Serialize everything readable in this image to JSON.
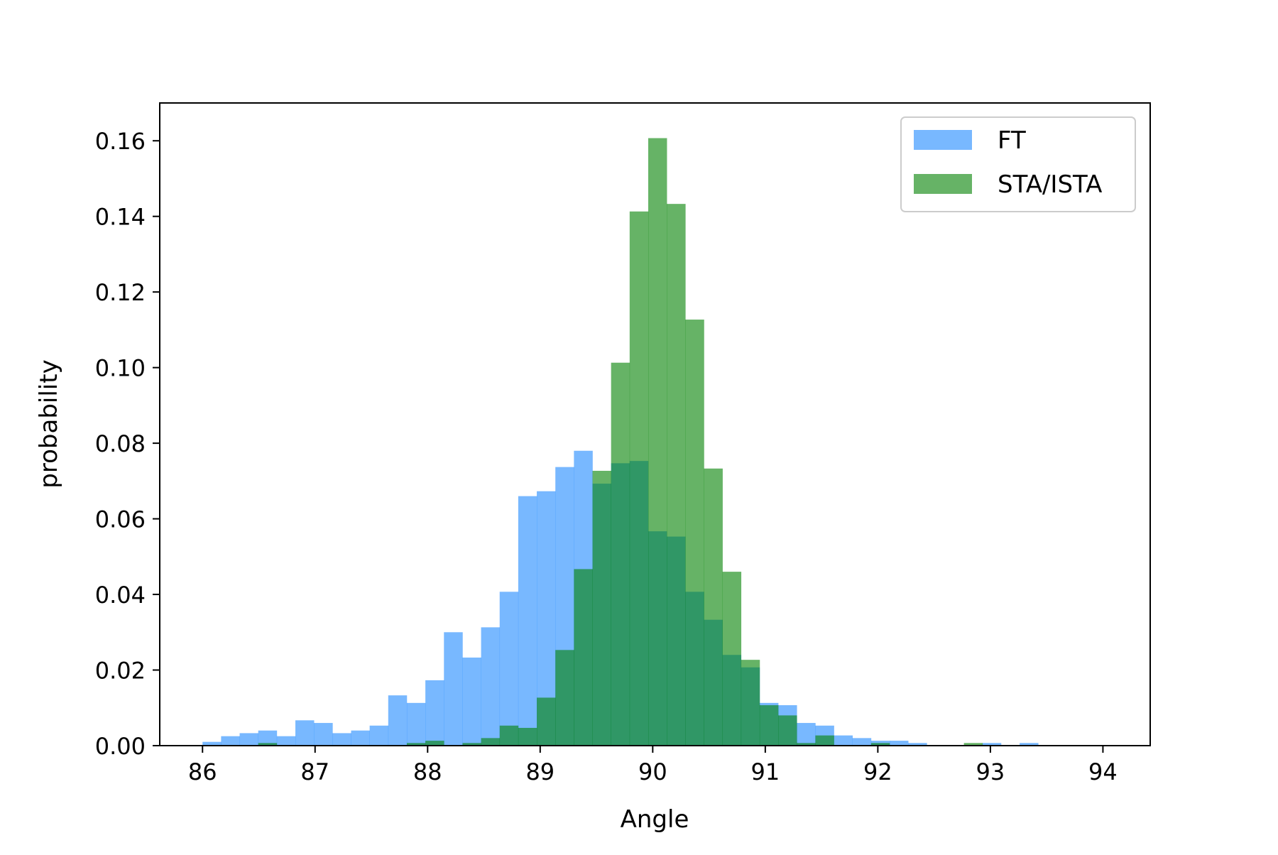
{
  "chart_data": {
    "type": "bar",
    "title": "",
    "xlabel": "Angle",
    "ylabel": "probability",
    "xlim": [
      85.62,
      94.42
    ],
    "ylim": [
      0,
      0.17
    ],
    "grid": false,
    "legend_position": "top-right",
    "xticks": [
      "86",
      "87",
      "88",
      "89",
      "90",
      "91",
      "92",
      "93",
      "94"
    ],
    "xtick_values": [
      86,
      87,
      88,
      89,
      90,
      91,
      92,
      93,
      94
    ],
    "yticks": [
      "0.00",
      "0.02",
      "0.04",
      "0.06",
      "0.08",
      "0.10",
      "0.12",
      "0.14",
      "0.16"
    ],
    "ytick_values": [
      0,
      0.02,
      0.04,
      0.06,
      0.08,
      0.1,
      0.12,
      0.14,
      0.16
    ],
    "x": [
      86.0,
      86.165,
      86.33,
      86.495,
      86.66,
      86.825,
      86.99,
      87.155,
      87.32,
      87.485,
      87.65,
      87.815,
      87.98,
      88.145,
      88.31,
      88.475,
      88.64,
      88.805,
      88.97,
      89.135,
      89.3,
      89.465,
      89.63,
      89.795,
      89.96,
      90.125,
      90.29,
      90.455,
      90.62,
      90.785,
      90.95,
      91.115,
      91.28,
      91.445,
      91.61,
      91.775,
      91.94,
      92.105,
      92.27,
      92.435,
      92.6,
      92.765,
      92.93,
      93.095,
      93.26,
      93.425,
      93.59,
      93.755,
      93.92
    ],
    "bin_width": 0.165,
    "series": [
      {
        "name": "FT",
        "color": "#1E88FF",
        "opacity": 0.6,
        "values": [
          0.001,
          0.0025,
          0.0033,
          0.004,
          0.0025,
          0.0067,
          0.006,
          0.0033,
          0.004,
          0.0053,
          0.0133,
          0.0113,
          0.0173,
          0.03,
          0.0233,
          0.0313,
          0.0407,
          0.066,
          0.0673,
          0.0737,
          0.078,
          0.0693,
          0.0747,
          0.0753,
          0.0567,
          0.0553,
          0.0407,
          0.0333,
          0.024,
          0.0207,
          0.0113,
          0.0107,
          0.006,
          0.0053,
          0.0027,
          0.002,
          0.0013,
          0.0013,
          0.0007,
          0.0,
          0.0,
          0.0,
          0.0007,
          0.0,
          0.0007,
          0.0,
          0.0,
          0.0,
          0.0
        ]
      },
      {
        "name": "STA/ISTA",
        "color": "#008000",
        "opacity": 0.6,
        "values": [
          0.0,
          0.0,
          0.0,
          0.0007,
          0.0,
          0.0,
          0.0,
          0.0,
          0.0,
          0.0,
          0.0,
          0.0007,
          0.0013,
          0.0,
          0.0007,
          0.002,
          0.0053,
          0.0047,
          0.0127,
          0.0253,
          0.0467,
          0.0727,
          0.1013,
          0.1413,
          0.1607,
          0.1433,
          0.1127,
          0.0733,
          0.046,
          0.0227,
          0.0107,
          0.008,
          0.0007,
          0.0027,
          0.0,
          0.0,
          0.0007,
          0.0,
          0.0,
          0.0,
          0.0,
          0.0007,
          0.0,
          0.0,
          0.0,
          0.0,
          0.0,
          0.0,
          0.0
        ]
      }
    ]
  }
}
